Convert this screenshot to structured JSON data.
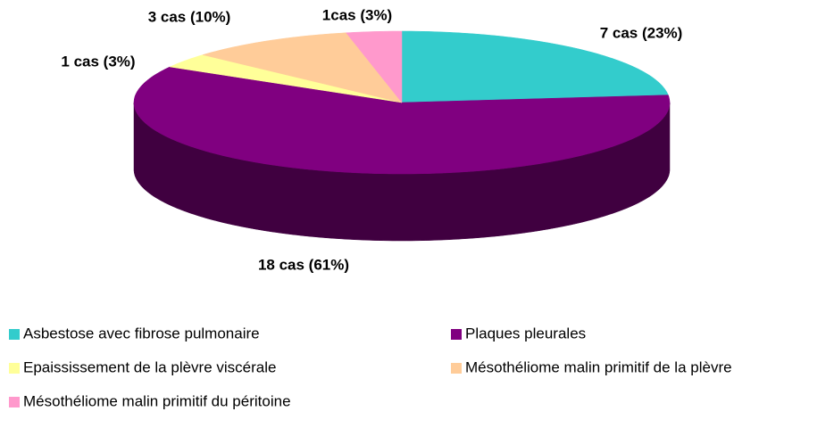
{
  "chart_data": {
    "type": "pie",
    "categories": [
      "Asbestose avec fibrose pulmonaire",
      "Plaques pleurales",
      "Epaississement de la plèvre viscérale",
      "Mésothéliome malin primitif de la plèvre",
      "Mésothéliome malin primitif du péritoine"
    ],
    "values": [
      7,
      18,
      1,
      3,
      1
    ],
    "value_labels": [
      "7 cas (23%)",
      "18 cas (61%)",
      "1 cas (3%)",
      "3 cas (10%)",
      "1cas (3%)"
    ],
    "colors": [
      "#33CCCC",
      "#800080",
      "#FFFF99",
      "#FFCC99",
      "#FF99CC"
    ],
    "legend": "bottom"
  }
}
